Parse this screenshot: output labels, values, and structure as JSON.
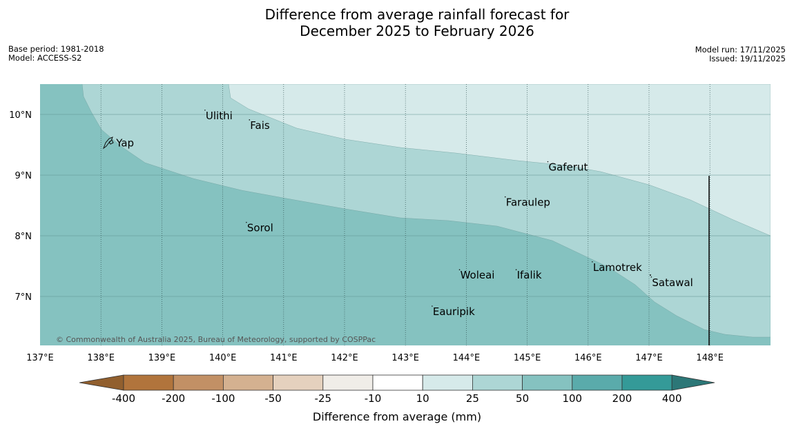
{
  "title": {
    "line1": "Difference from average rainfall forecast for",
    "line2": "December 2025 to February 2026"
  },
  "meta": {
    "base_period": "Base period: 1981-2018",
    "model": "Model: ACCESS-S2",
    "model_run": "Model run: 17/11/2025",
    "issued": "Issued: 19/11/2025"
  },
  "map": {
    "lon_range": [
      137,
      149
    ],
    "lat_range": [
      6.2,
      10.5
    ],
    "lon_ticks": [
      "137°E",
      "138°E",
      "139°E",
      "140°E",
      "141°E",
      "142°E",
      "143°E",
      "144°E",
      "145°E",
      "146°E",
      "147°E",
      "148°E"
    ],
    "lat_ticks": [
      "10°N",
      "9°N",
      "8°N",
      "7°N"
    ],
    "places": [
      {
        "name": "Yap",
        "lon": 138.25,
        "lat": 9.53
      },
      {
        "name": "Ulithi",
        "lon": 139.72,
        "lat": 9.98
      },
      {
        "name": "Fais",
        "lon": 140.45,
        "lat": 9.82
      },
      {
        "name": "Gaferut",
        "lon": 145.35,
        "lat": 9.13
      },
      {
        "name": "Faraulep",
        "lon": 144.65,
        "lat": 8.55
      },
      {
        "name": "Sorol",
        "lon": 140.4,
        "lat": 8.13
      },
      {
        "name": "Lamotrek",
        "lon": 146.08,
        "lat": 7.48
      },
      {
        "name": "Woleai",
        "lon": 143.9,
        "lat": 7.35
      },
      {
        "name": "Ifalik",
        "lon": 144.83,
        "lat": 7.35
      },
      {
        "name": "Satawal",
        "lon": 147.05,
        "lat": 7.23
      },
      {
        "name": "Eauripik",
        "lon": 143.45,
        "lat": 6.75
      }
    ],
    "copyright": "© Commonwealth of Australia 2025, Bureau of Meteorology, supported by COSPPac",
    "zone_colors": [
      "#85c2c0",
      "#add6d5",
      "#d6eaea"
    ]
  },
  "colorbar": {
    "labels": [
      "-400",
      "-200",
      "-100",
      "-50",
      "-25",
      "-10",
      "10",
      "25",
      "50",
      "100",
      "200",
      "400"
    ],
    "colors": [
      "#b1743c",
      "#c29065",
      "#d4b190",
      "#e5d1be",
      "#f0ede8",
      "#ffffff",
      "#d6eaea",
      "#add6d5",
      "#85c2c0",
      "#5aabab",
      "#349a98"
    ],
    "low_extend_color": "#915f2e",
    "high_extend_color": "#2c7777",
    "label": "Difference from average (mm)"
  }
}
